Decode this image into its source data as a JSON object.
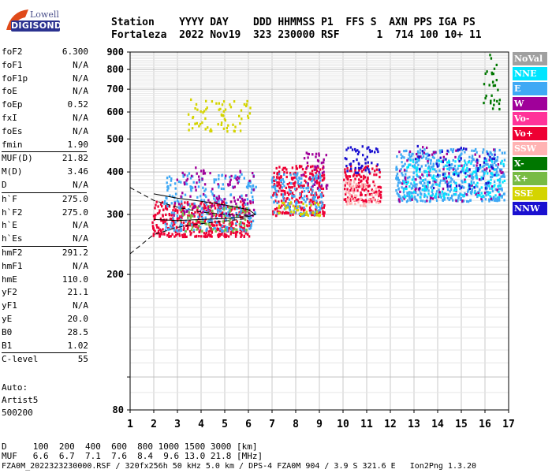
{
  "logo": {
    "line1": "Lowell",
    "line2": "DIGISONDE"
  },
  "header": {
    "labels": "Station    YYYY DAY    DDD HHMMSS P1  FFS S  AXN PPS IGA PS",
    "values": "Fortaleza  2022 Nov19  323 230000 RSF      1  714 100 10+ 11"
  },
  "scaled": [
    {
      "key": "foF2",
      "value": "6.300"
    },
    {
      "key": "foF1",
      "value": "N/A"
    },
    {
      "key": "foF1p",
      "value": "N/A"
    },
    {
      "key": "foE",
      "value": "N/A"
    },
    {
      "key": "foEp",
      "value": "0.52"
    },
    {
      "key": "fxI",
      "value": "N/A"
    },
    {
      "key": "foEs",
      "value": "N/A"
    },
    {
      "key": "fmin",
      "value": "1.90"
    },
    {
      "key": "MUF(D)",
      "value": "21.82"
    },
    {
      "key": "M(D)",
      "value": "3.46"
    },
    {
      "key": "D",
      "value": "N/A"
    },
    {
      "key": "h`F",
      "value": "275.0"
    },
    {
      "key": "h`F2",
      "value": "275.0"
    },
    {
      "key": "h`E",
      "value": "N/A"
    },
    {
      "key": "h`Es",
      "value": "N/A"
    },
    {
      "key": "hmF2",
      "value": "291.2"
    },
    {
      "key": "hmF1",
      "value": "N/A"
    },
    {
      "key": "hmE",
      "value": "110.0"
    },
    {
      "key": "yF2",
      "value": "21.1"
    },
    {
      "key": "yF1",
      "value": "N/A"
    },
    {
      "key": "yE",
      "value": "20.0"
    },
    {
      "key": "B0",
      "value": "28.5"
    },
    {
      "key": "B1",
      "value": "1.02"
    },
    {
      "key": "C-level",
      "value": "55"
    }
  ],
  "auto": {
    "line1": "Auto:",
    "line2": "Artist5",
    "line3": "500200"
  },
  "legend": [
    {
      "label": "NoVal",
      "bg": "#a0a0a0",
      "fg": "#ffffff"
    },
    {
      "label": "NNE",
      "bg": "#00e5ff",
      "fg": "#ffffff"
    },
    {
      "label": "E",
      "bg": "#3fa9f5",
      "fg": "#ffffff"
    },
    {
      "label": "W",
      "bg": "#a0009a",
      "fg": "#ffffff"
    },
    {
      "label": "Vo-",
      "bg": "#ff3399",
      "fg": "#ffffff"
    },
    {
      "label": "Vo+",
      "bg": "#ee0033",
      "fg": "#ffffff"
    },
    {
      "label": "SSW",
      "bg": "#ffb3b3",
      "fg": "#ffffff"
    },
    {
      "label": "X-",
      "bg": "#007700",
      "fg": "#ffffff"
    },
    {
      "label": "X+",
      "bg": "#77bb44",
      "fg": "#ffffff"
    },
    {
      "label": "SSE",
      "bg": "#d4d400",
      "fg": "#ffffff"
    },
    {
      "label": "NNW",
      "bg": "#1a10d0",
      "fg": "#ffffff"
    }
  ],
  "mufTable": {
    "dRow": "D     100  200  400  600  800 1000 1500 3000 [km]",
    "mufRow": "MUF   6.6  6.7  7.1  7.6  8.4  9.6 13.0 21.8 [MHz]"
  },
  "footer": "FZA0M_2022323230000.RSF / 320fx256h 50 kHz 5.0 km / DPS-4 FZA0M 904 / 3.9 S 321.6 E   Ion2Png 1.3.20",
  "chart_data": {
    "type": "scatter",
    "xlim": [
      1,
      17
    ],
    "ylim": [
      80,
      900
    ],
    "y_scale": "log",
    "xticks": [
      1,
      2,
      3,
      4,
      5,
      6,
      7,
      8,
      9,
      10,
      11,
      12,
      13,
      14,
      15,
      16,
      17
    ],
    "yticks": [
      80,
      100,
      200,
      300,
      400,
      500,
      600,
      700,
      800,
      900
    ],
    "ytick_labels": [
      "80",
      "",
      "200",
      "300",
      "400",
      "500",
      "600",
      "700",
      "800",
      "900"
    ],
    "grid": true,
    "clusters": [
      {
        "mode": "Vo+",
        "color": "#ee0033",
        "fx": [
          1.9,
          6.1
        ],
        "hy": [
          260,
          330
        ],
        "n": 420
      },
      {
        "mode": "E",
        "color": "#3fa9f5",
        "fx": [
          2.4,
          6.3
        ],
        "hy": [
          270,
          400
        ],
        "n": 260
      },
      {
        "mode": "W",
        "color": "#a0009a",
        "fx": [
          2.8,
          6.2
        ],
        "hy": [
          300,
          420
        ],
        "n": 110
      },
      {
        "mode": "X+",
        "color": "#77bb44",
        "fx": [
          3.0,
          6.0
        ],
        "hy": [
          270,
          320
        ],
        "n": 60
      },
      {
        "mode": "SSE",
        "color": "#d4d400",
        "fx": [
          3.4,
          6.1
        ],
        "hy": [
          530,
          660
        ],
        "n": 70
      },
      {
        "mode": "Vo+",
        "color": "#ee0033",
        "fx": [
          7.0,
          9.2
        ],
        "hy": [
          300,
          420
        ],
        "n": 260
      },
      {
        "mode": "E",
        "color": "#3fa9f5",
        "fx": [
          6.9,
          9.1
        ],
        "hy": [
          300,
          400
        ],
        "n": 140
      },
      {
        "mode": "SSE",
        "color": "#d4d400",
        "fx": [
          7.2,
          9.0
        ],
        "hy": [
          300,
          330
        ],
        "n": 40
      },
      {
        "mode": "W",
        "color": "#a0009a",
        "fx": [
          8.2,
          9.3
        ],
        "hy": [
          360,
          460
        ],
        "n": 40
      },
      {
        "mode": "Vo+",
        "color": "#ee0033",
        "fx": [
          10.0,
          11.6
        ],
        "hy": [
          330,
          420
        ],
        "n": 140
      },
      {
        "mode": "SSW",
        "color": "#ffb3b3",
        "fx": [
          10.0,
          11.5
        ],
        "hy": [
          320,
          380
        ],
        "n": 60
      },
      {
        "mode": "NNW",
        "color": "#1a10d0",
        "fx": [
          10.0,
          11.5
        ],
        "hy": [
          400,
          480
        ],
        "n": 50
      },
      {
        "mode": "E",
        "color": "#3fa9f5",
        "fx": [
          12.2,
          16.8
        ],
        "hy": [
          330,
          470
        ],
        "n": 520
      },
      {
        "mode": "W",
        "color": "#a0009a",
        "fx": [
          12.2,
          16.8
        ],
        "hy": [
          330,
          480
        ],
        "n": 90
      },
      {
        "mode": "NNE",
        "color": "#00e5ff",
        "fx": [
          12.5,
          16.8
        ],
        "hy": [
          340,
          440
        ],
        "n": 160
      },
      {
        "mode": "NNW",
        "color": "#1a10d0",
        "fx": [
          13.0,
          16.5
        ],
        "hy": [
          360,
          480
        ],
        "n": 60
      },
      {
        "mode": "X-",
        "color": "#007700",
        "fx": [
          15.9,
          16.6
        ],
        "hy": [
          600,
          890
        ],
        "n": 30
      }
    ],
    "profile_lines": [
      {
        "style": "dashed",
        "points": [
          [
            1.0,
            360
          ],
          [
            2.0,
            330
          ],
          [
            3.0,
            315
          ],
          [
            4.0,
            305
          ],
          [
            5.0,
            300
          ],
          [
            6.0,
            298
          ]
        ]
      },
      {
        "style": "dashed",
        "points": [
          [
            1.0,
            230
          ],
          [
            2.0,
            262
          ],
          [
            3.0,
            275
          ],
          [
            4.0,
            282
          ],
          [
            5.0,
            287
          ],
          [
            6.0,
            292
          ]
        ]
      },
      {
        "style": "solid",
        "points": [
          [
            2.0,
            345
          ],
          [
            3.0,
            335
          ],
          [
            4.0,
            328
          ],
          [
            5.0,
            320
          ],
          [
            6.0,
            310
          ],
          [
            6.3,
            300
          ]
        ]
      },
      {
        "style": "solid",
        "points": [
          [
            2.0,
            290
          ],
          [
            3.0,
            288
          ],
          [
            4.0,
            290
          ],
          [
            5.0,
            292
          ],
          [
            6.0,
            296
          ],
          [
            6.3,
            300
          ]
        ]
      }
    ]
  }
}
